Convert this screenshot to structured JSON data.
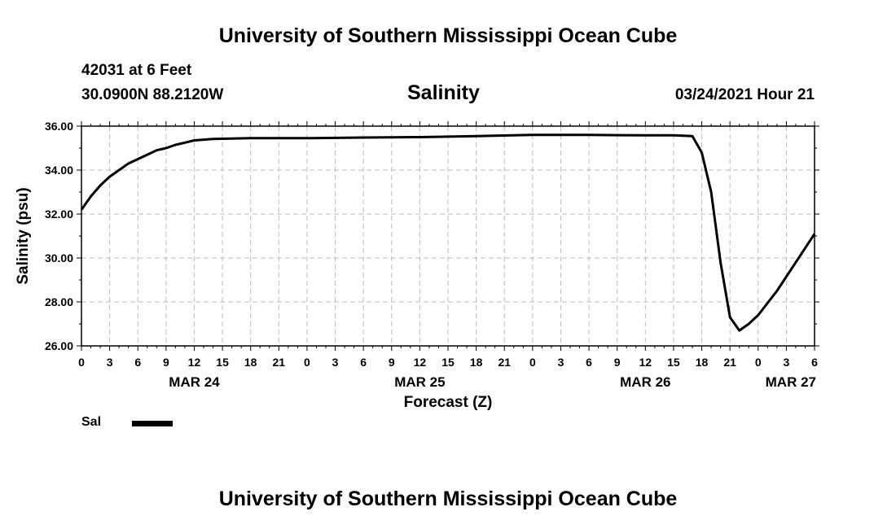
{
  "header": {
    "title": "University of Southern Mississippi Ocean Cube",
    "station": "42031 at 6 Feet",
    "coordinates": "30.0900N 88.2120W",
    "parameter": "Salinity",
    "datetime": "03/24/2021 Hour 21"
  },
  "footer": {
    "title": "University of Southern Mississippi Ocean Cube"
  },
  "legend": {
    "label": "Sal"
  },
  "chart_data": {
    "type": "line",
    "title": "Salinity",
    "xlabel": "Forecast (Z)",
    "ylabel": "Salinity (psu)",
    "ylim": [
      26,
      36
    ],
    "xlim_hours": [
      0,
      78
    ],
    "grid": true,
    "line_color": "#000000",
    "yticks": [
      "26.00",
      "28.00",
      "30.00",
      "32.00",
      "34.00",
      "36.00"
    ],
    "ytick_values": [
      26,
      28,
      30,
      32,
      34,
      36
    ],
    "xtick_labels": [
      "0",
      "3",
      "6",
      "9",
      "12",
      "15",
      "18",
      "21",
      "0",
      "3",
      "6",
      "9",
      "12",
      "15",
      "18",
      "21",
      "0",
      "3",
      "6",
      "9",
      "12",
      "15",
      "18",
      "21",
      "0",
      "3",
      "6"
    ],
    "date_labels": [
      {
        "label": "MAR 24",
        "hour": 12
      },
      {
        "label": "MAR 25",
        "hour": 36
      },
      {
        "label": "MAR 26",
        "hour": 60
      },
      {
        "label": "MAR 27",
        "hour": 78
      }
    ],
    "series": [
      {
        "name": "Sal",
        "x": [
          0,
          1,
          2,
          3,
          4,
          5,
          6,
          7,
          8,
          9,
          10,
          11,
          12,
          14,
          18,
          24,
          30,
          36,
          42,
          48,
          54,
          60,
          63,
          65,
          66,
          67,
          68,
          69,
          70,
          71,
          72,
          74,
          76,
          78
        ],
        "values": [
          32.2,
          32.8,
          33.3,
          33.7,
          34.0,
          34.3,
          34.5,
          34.7,
          34.9,
          35.0,
          35.15,
          35.25,
          35.35,
          35.42,
          35.45,
          35.45,
          35.48,
          35.5,
          35.55,
          35.6,
          35.6,
          35.58,
          35.58,
          35.55,
          34.8,
          33.0,
          29.8,
          27.3,
          26.7,
          27.0,
          27.4,
          28.5,
          29.8,
          31.1
        ]
      }
    ]
  }
}
